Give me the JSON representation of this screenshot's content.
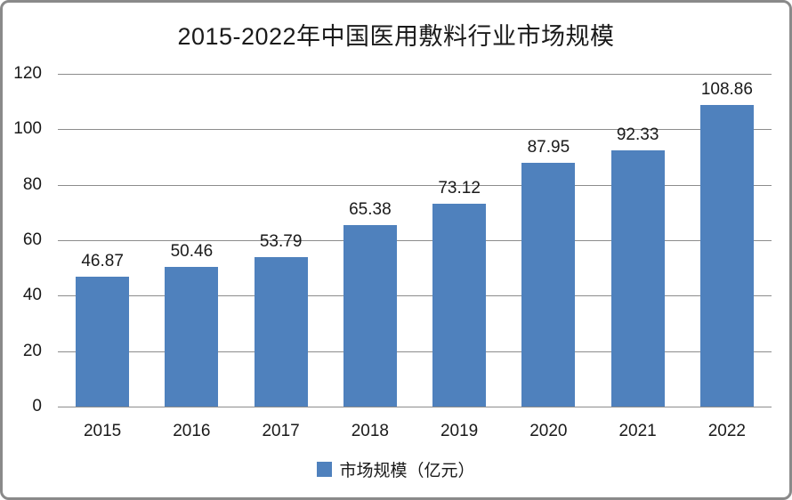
{
  "chart_data": {
    "type": "bar",
    "title": "2015-2022年中国医用敷料行业市场规模",
    "categories": [
      "2015",
      "2016",
      "2017",
      "2018",
      "2019",
      "2020",
      "2021",
      "2022"
    ],
    "series": [
      {
        "name": "市场规模（亿元）",
        "values": [
          46.87,
          50.46,
          53.79,
          65.38,
          73.12,
          87.95,
          92.33,
          108.86
        ]
      }
    ],
    "data_labels": [
      "46.87",
      "50.46",
      "53.79",
      "65.38",
      "73.12",
      "87.95",
      "92.33",
      "108.86"
    ],
    "xlabel": "",
    "ylabel": "",
    "ylim": [
      0,
      120
    ],
    "yticks": [
      0,
      20,
      40,
      60,
      80,
      100,
      120
    ],
    "grid": true,
    "legend_position": "bottom",
    "colors": {
      "bar": "#4F81BD",
      "gridline": "#8C8C8C",
      "frame_border": "#8A8A8A",
      "text": "#1a1a1a"
    }
  }
}
